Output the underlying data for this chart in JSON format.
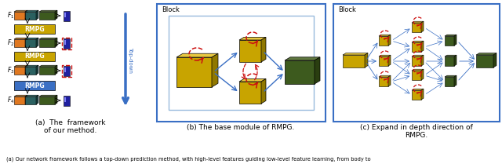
{
  "caption": "(a) Our network framework follows a top-down prediction method, with high-level features guiding low-level feature learning, from body to",
  "subfig_a_label": "(a)  The  framework\nof our method.",
  "subfig_b_label": "(b) The base module of RMPG.",
  "subfig_c_label": "(c) Expand in depth direction of\nRMPG.",
  "bg_color": "#ffffff",
  "dark_green": "#4a6a1a",
  "dark_green2": "#3d5a1e",
  "yellow_box": "#c8a400",
  "yellow_top": "#e8c840",
  "yellow_side": "#907800",
  "orange": "#e07820",
  "orange_top": "#d09040",
  "orange_side": "#a05010",
  "teal": "#2a6060",
  "teal_top": "#3a8080",
  "teal_side": "#1a4040",
  "green_top": "#607840",
  "green_side": "#2a3e10",
  "sky_blue": "#3a6fc4",
  "red_arrow": "#cc1010",
  "light_green_box": "#80b040",
  "heatmap_color": "#2020a0"
}
